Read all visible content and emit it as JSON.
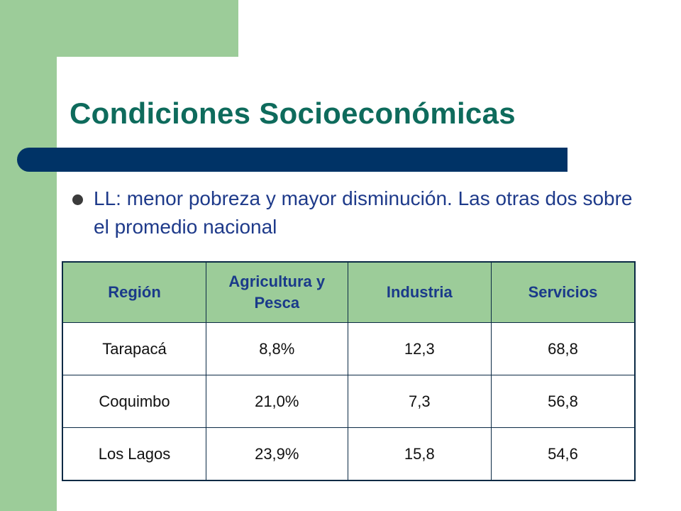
{
  "slide": {
    "title": "Condiciones Socioeconómicas",
    "bullet": "LL: menor pobreza y mayor disminución. Las otras dos sobre el promedio nacional"
  },
  "table": {
    "headers": [
      "Región",
      "Agricultura y Pesca",
      "Industria",
      "Servicios"
    ],
    "rows": [
      [
        "Tarapacá",
        "8,8%",
        "12,3",
        "68,8"
      ],
      [
        "Coquimbo",
        "21,0%",
        "7,3",
        "56,8"
      ],
      [
        "Los Lagos",
        "23,9%",
        "15,8",
        "54,6"
      ]
    ]
  },
  "colors": {
    "accent_green": "#9ccc99",
    "title_teal": "#0e6b5c",
    "bar_navy": "#003366",
    "text_blue": "#1e3a8a"
  }
}
